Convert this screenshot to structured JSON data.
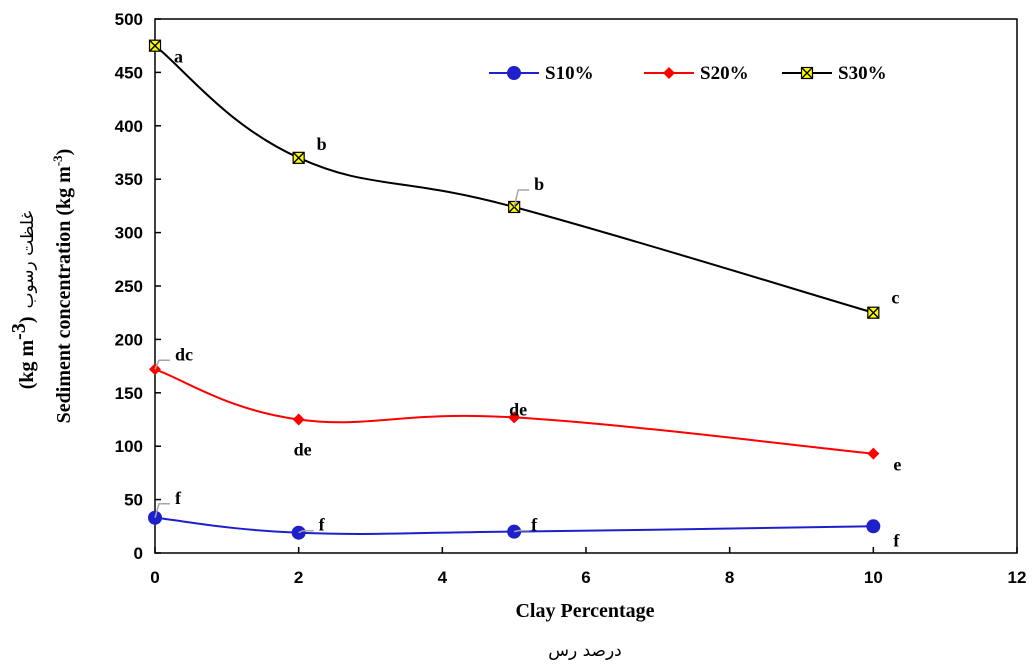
{
  "chart_data": {
    "type": "line",
    "title": "",
    "xlabel": "Clay Percentage",
    "xlabel_fa": "درصد رس",
    "ylabel": "Sediment concentration (kg m",
    "ylabel_sup": "-3",
    "ylabel_close": ")",
    "ylabel_fa": "غلظت رسوب",
    "ylabel_fa_unit": "(kg m",
    "ylabel_fa_sup": "-3",
    "ylabel_fa_close": ")",
    "xlim": [
      0,
      12
    ],
    "ylim": [
      0,
      500
    ],
    "x_ticks": [
      0,
      2,
      4,
      6,
      8,
      10,
      12
    ],
    "y_ticks": [
      0,
      50,
      100,
      150,
      200,
      250,
      300,
      350,
      400,
      450,
      500
    ],
    "grid": false,
    "legend_position": "top-right",
    "series": [
      {
        "name": "S10%",
        "color": "#1f1fcc",
        "marker": "circle",
        "x": [
          0,
          2,
          5,
          10
        ],
        "y": [
          33,
          19,
          20,
          25
        ],
        "labels": [
          "f",
          "f",
          "f",
          "f"
        ]
      },
      {
        "name": "S20%",
        "color": "#ff0000",
        "marker": "diamond",
        "x": [
          0,
          2,
          5,
          10
        ],
        "y": [
          172,
          125,
          127,
          93
        ],
        "labels": [
          "dc",
          "de",
          "de",
          "e"
        ]
      },
      {
        "name": "S30%",
        "color": "#000000",
        "marker": "square-x",
        "marker_fill": "#ffff00",
        "x": [
          0,
          2,
          5,
          10
        ],
        "y": [
          475,
          370,
          324,
          225
        ],
        "labels": [
          "a",
          "b",
          "b",
          "c"
        ]
      }
    ]
  }
}
